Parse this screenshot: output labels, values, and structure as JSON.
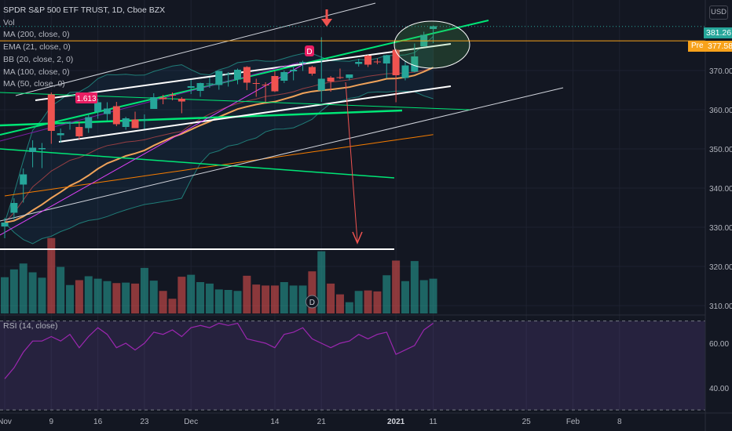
{
  "header": {
    "title": "SPDR S&P 500 ETF TRUST, 1D, Cboe BZX",
    "currency": "USD",
    "indicators": [
      "Vol",
      "MA (200, close, 0)",
      "EMA (21, close, 0)",
      "BB (20, close, 2, 0)",
      "MA (100, close, 0)",
      "MA (50, close, 0)"
    ],
    "rsi_label": "RSI (14, close)"
  },
  "annotations": {
    "fib_label": "1.613",
    "dividend_marker": "D"
  },
  "price_axis": {
    "ticks": [
      "370.00",
      "360.00",
      "350.00",
      "340.00",
      "330.00",
      "320.00",
      "310.00"
    ],
    "last_price": "381.26",
    "pre_label": "Pre",
    "pre_price": "377.58"
  },
  "rsi_axis": {
    "ticks": [
      "60.00",
      "40.00"
    ]
  },
  "time_axis": {
    "labels": [
      "Nov",
      "9",
      "16",
      "23",
      "Dec",
      "14",
      "21",
      "2021",
      "11",
      "25",
      "Feb",
      "8"
    ]
  },
  "colors": {
    "background": "#131722",
    "up": "#26a69a",
    "down": "#ef5350",
    "trend_green": "#00e676",
    "trend_white": "#ffffff",
    "ema": "#f0a35a",
    "rsi": "#9c27b0",
    "pre_badge": "#f7a21b"
  },
  "chart_data": {
    "type": "candlestick",
    "title": "SPDR S&P 500 ETF TRUST, 1D, Cboe BZX",
    "x": [
      "2020-11-02",
      "2020-11-03",
      "2020-11-04",
      "2020-11-05",
      "2020-11-06",
      "2020-11-09",
      "2020-11-10",
      "2020-11-11",
      "2020-11-12",
      "2020-11-13",
      "2020-11-16",
      "2020-11-17",
      "2020-11-18",
      "2020-11-19",
      "2020-11-20",
      "2020-11-23",
      "2020-11-24",
      "2020-11-25",
      "2020-11-27",
      "2020-11-30",
      "2020-12-01",
      "2020-12-02",
      "2020-12-03",
      "2020-12-04",
      "2020-12-07",
      "2020-12-08",
      "2020-12-09",
      "2020-12-10",
      "2020-12-11",
      "2020-12-14",
      "2020-12-15",
      "2020-12-16",
      "2020-12-17",
      "2020-12-18",
      "2020-12-21",
      "2020-12-22",
      "2020-12-23",
      "2020-12-24",
      "2020-12-28",
      "2020-12-29",
      "2020-12-30",
      "2020-12-31",
      "2021-01-04",
      "2021-01-05",
      "2021-01-06",
      "2021-01-07",
      "2021-01-08"
    ],
    "open": [
      330.2,
      333.7,
      340.9,
      349.2,
      349.9,
      363.9,
      353.5,
      356.4,
      355.6,
      355.3,
      359.5,
      358.9,
      360.9,
      355.6,
      357.5,
      357.3,
      360.2,
      363.1,
      363.8,
      362.8,
      365.6,
      364.8,
      366.7,
      366.3,
      369.0,
      367.7,
      370.9,
      366.8,
      366.4,
      368.6,
      367.4,
      369.8,
      371.9,
      370.9,
      364.9,
      368.2,
      368.3,
      368.1,
      371.7,
      373.8,
      372.3,
      371.8,
      375.3,
      368.1,
      369.7,
      376.2,
      380.6
    ],
    "high": [
      332.4,
      337.4,
      345.0,
      352.2,
      351.5,
      364.4,
      355.2,
      357.0,
      357.0,
      359.0,
      362.8,
      361.9,
      362.0,
      358.2,
      359.5,
      358.8,
      364.2,
      363.8,
      364.4,
      363.2,
      367.6,
      366.9,
      368.2,
      369.8,
      369.6,
      370.5,
      371.1,
      367.9,
      367.0,
      369.8,
      370.0,
      371.2,
      372.5,
      371.2,
      378.5,
      368.6,
      370.5,
      369.0,
      373.0,
      374.0,
      373.1,
      374.0,
      375.5,
      372.5,
      376.9,
      379.9,
      381.5
    ],
    "low": [
      327.2,
      332.0,
      336.3,
      345.3,
      345.1,
      351.3,
      351.6,
      354.9,
      352.4,
      354.1,
      357.7,
      357.3,
      355.8,
      354.9,
      355.5,
      355.1,
      360.2,
      361.4,
      362.4,
      359.1,
      364.0,
      363.3,
      365.6,
      365.1,
      365.9,
      366.5,
      365.0,
      363.3,
      362.0,
      364.5,
      366.8,
      367.5,
      369.9,
      368.7,
      362.0,
      364.6,
      367.8,
      367.5,
      371.0,
      370.9,
      371.6,
      368.0,
      361.9,
      367.5,
      369.5,
      376.1,
      377.0
    ],
    "close": [
      331.2,
      336.2,
      343.5,
      350.3,
      350.2,
      354.6,
      354.0,
      356.7,
      353.2,
      358.1,
      361.9,
      360.3,
      356.3,
      357.8,
      355.3,
      357.5,
      363.2,
      362.7,
      363.7,
      362.1,
      366.0,
      366.8,
      366.7,
      369.9,
      369.1,
      370.2,
      366.9,
      366.7,
      366.3,
      364.7,
      369.6,
      370.2,
      372.2,
      369.2,
      367.9,
      367.2,
      368.2,
      369.0,
      372.2,
      371.5,
      372.2,
      373.9,
      368.8,
      371.3,
      373.6,
      379.1,
      381.3
    ],
    "volume": [
      74,
      90,
      102,
      84,
      73,
      154,
      95,
      58,
      68,
      76,
      71,
      66,
      62,
      63,
      61,
      93,
      67,
      46,
      30,
      75,
      79,
      64,
      61,
      49,
      48,
      46,
      77,
      59,
      57,
      57,
      64,
      57,
      57,
      86,
      127,
      61,
      39,
      23,
      46,
      47,
      45,
      78,
      108,
      66,
      107,
      68,
      71
    ],
    "rsi": [
      44,
      49,
      56,
      61,
      61,
      63,
      61,
      64,
      58,
      63,
      67,
      64,
      58,
      60,
      57,
      60,
      65,
      64,
      66,
      63,
      67,
      68,
      67,
      69,
      68,
      69,
      62,
      61,
      60,
      58,
      64,
      65,
      67,
      62,
      60,
      58,
      60,
      61,
      64,
      62,
      64,
      65,
      55,
      57,
      59,
      66,
      69
    ],
    "dividend_date": "2020-12-18",
    "price_ylim": [
      307,
      388
    ],
    "rsi_ylim": [
      29,
      72
    ],
    "price_ticks": [
      310,
      320,
      330,
      340,
      350,
      360,
      370
    ],
    "rsi_ticks": [
      40,
      60
    ],
    "last_price": 381.26,
    "pre_price": 377.58
  }
}
